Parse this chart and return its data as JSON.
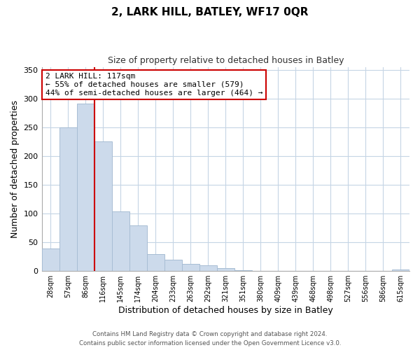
{
  "title": "2, LARK HILL, BATLEY, WF17 0QR",
  "subtitle": "Size of property relative to detached houses in Batley",
  "xlabel": "Distribution of detached houses by size in Batley",
  "ylabel": "Number of detached properties",
  "bar_labels": [
    "28sqm",
    "57sqm",
    "86sqm",
    "116sqm",
    "145sqm",
    "174sqm",
    "204sqm",
    "233sqm",
    "263sqm",
    "292sqm",
    "321sqm",
    "351sqm",
    "380sqm",
    "409sqm",
    "439sqm",
    "468sqm",
    "498sqm",
    "527sqm",
    "556sqm",
    "586sqm",
    "615sqm"
  ],
  "bar_values": [
    39,
    250,
    291,
    225,
    104,
    79,
    29,
    19,
    12,
    10,
    5,
    1,
    0,
    0,
    0,
    0,
    0,
    0,
    0,
    0,
    2
  ],
  "bar_color": "#ccdaeb",
  "bar_edge_color": "#a8bdd4",
  "highlight_index": 3,
  "marker_line_color": "#cc0000",
  "ylim": [
    0,
    355
  ],
  "yticks": [
    0,
    50,
    100,
    150,
    200,
    250,
    300,
    350
  ],
  "annotation_title": "2 LARK HILL: 117sqm",
  "annotation_line1": "← 55% of detached houses are smaller (579)",
  "annotation_line2": "44% of semi-detached houses are larger (464) →",
  "annotation_box_color": "#ffffff",
  "annotation_box_edge": "#cc0000",
  "footer_line1": "Contains HM Land Registry data © Crown copyright and database right 2024.",
  "footer_line2": "Contains public sector information licensed under the Open Government Licence v3.0.",
  "background_color": "#ffffff",
  "grid_color": "#c5d5e5"
}
